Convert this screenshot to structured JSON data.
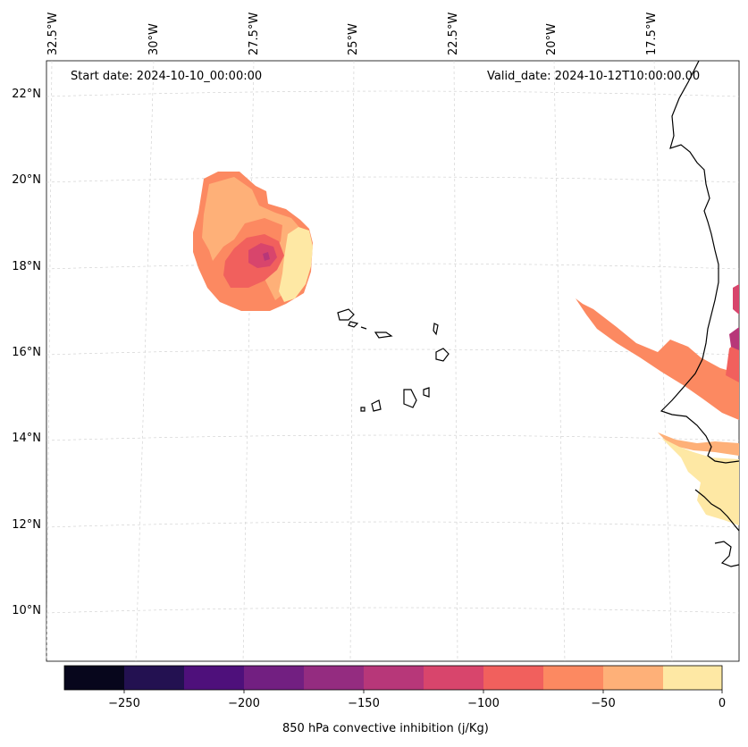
{
  "header": {
    "start_date": "Start date: 2024-10-10_00:00:00",
    "valid_date": "Valid_date: 2024-10-12T10:00:00.00"
  },
  "map": {
    "lon_labels": [
      "32.5°W",
      "30°W",
      "27.5°W",
      "25°W",
      "22.5°W",
      "20°W",
      "17.5°W"
    ],
    "lat_labels": [
      "22°N",
      "20°N",
      "18°N",
      "16°N",
      "14°N",
      "12°N",
      "10°N"
    ],
    "gridlines": true
  },
  "colorbar": {
    "title": "850 hPa convective inhibition (j/Kg)",
    "ticks": [
      "−250",
      "−200",
      "−150",
      "−100",
      "−50",
      "0"
    ],
    "colors": [
      "#07061c",
      "#231151",
      "#4e107b",
      "#721f81",
      "#942c80",
      "#b73779",
      "#d8456c",
      "#f1605d",
      "#fc8961",
      "#feb078",
      "#fee8a4"
    ]
  },
  "fill_colors": {
    "light_yellow": "#fee8a4",
    "light_orange": "#feb078",
    "orange": "#fc8961",
    "red_orange": "#f1605d",
    "red": "#d8456c",
    "magenta": "#b73779"
  }
}
